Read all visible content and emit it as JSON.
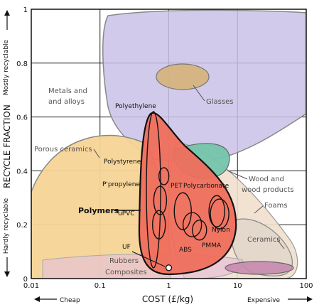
{
  "chart_data": {
    "type": "scatter",
    "chart_kind": "material property bubble chart",
    "x_scale": "log",
    "y_scale": "linear",
    "xlim": [
      0.01,
      100
    ],
    "ylim": [
      0,
      1
    ],
    "grid": true,
    "xlabel": "COST (£/kg)",
    "ylabel": "RECYCLE FRACTION",
    "x_ticks": [
      "0.01",
      "0.1",
      "1",
      "10",
      "100"
    ],
    "y_ticks": [
      "0",
      "0.2",
      "0.4",
      "0.6",
      "0.8",
      "1"
    ],
    "x_end_labels": {
      "left": "Cheap",
      "right": "Expensive"
    },
    "y_end_labels": {
      "bottom": "Hardly recyclable",
      "top": "Mostly recyclable"
    },
    "families": [
      {
        "name": "Glasses",
        "color": "#c8a564"
      },
      {
        "name": "Metals and and alloys",
        "color": "#b8b0d8"
      },
      {
        "name": "Porous ceramics",
        "color": "#f5cf86"
      },
      {
        "name": "Polymers",
        "color": "#ef6e5c"
      },
      {
        "name": "Wood and wood products",
        "color": "#6fc1a8"
      },
      {
        "name": "Foams",
        "color": "#ecd9c6"
      },
      {
        "name": "Ceramics",
        "color": "#e0d5cc"
      },
      {
        "name": "Rubbers",
        "color": "#d9a9c6"
      },
      {
        "name": "Composites",
        "color": "#c080a8"
      }
    ],
    "materials": [
      {
        "name": "Polyethylene",
        "x": 0.6,
        "y": 0.55
      },
      {
        "name": "Polystyrene",
        "x": 0.85,
        "y": 0.38
      },
      {
        "name": "P'propylene",
        "x": 0.75,
        "y": 0.29
      },
      {
        "name": "uPVC",
        "x": 0.72,
        "y": 0.2
      },
      {
        "name": "PET",
        "x": 1.6,
        "y": 0.25
      },
      {
        "name": "Polycarbonate",
        "x": 5.0,
        "y": 0.25
      },
      {
        "name": "ABS",
        "x": 2.2,
        "y": 0.2
      },
      {
        "name": "PMMA",
        "x": 2.8,
        "y": 0.18
      },
      {
        "name": "Nylon",
        "x": 5.5,
        "y": 0.24
      },
      {
        "name": "UF",
        "x": 1.0,
        "y": 0.04
      }
    ]
  }
}
